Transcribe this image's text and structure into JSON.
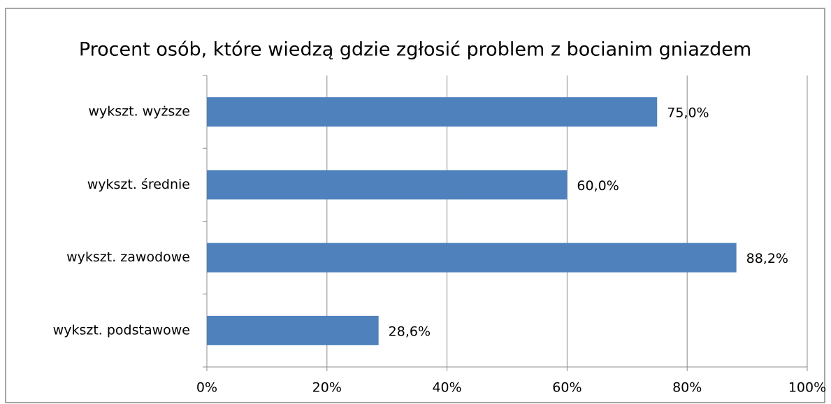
{
  "chart_data": {
    "type": "bar",
    "orientation": "horizontal",
    "title": "Procent osób, które wiedzą gdzie zgłosić problem z bocianim gniazdem",
    "categories": [
      "wykszt. wyższe",
      "wykszt. średnie",
      "wykszt. zawodowe",
      "wykszt. podstawowe"
    ],
    "values": [
      75,
      60,
      88.2,
      28.6
    ],
    "value_labels": [
      "75,0%",
      "60,0%",
      "88,2%",
      "28,6%"
    ],
    "color": "#4f81bd",
    "xlim": [
      0,
      100
    ],
    "xticks": [
      {
        "value": 0,
        "label": "0%"
      },
      {
        "value": 20,
        "label": "20%"
      },
      {
        "value": 40,
        "label": "40%"
      },
      {
        "value": 60,
        "label": "60%"
      },
      {
        "value": 80,
        "label": "80%"
      },
      {
        "value": 100,
        "label": "100%"
      }
    ],
    "grid": true
  }
}
